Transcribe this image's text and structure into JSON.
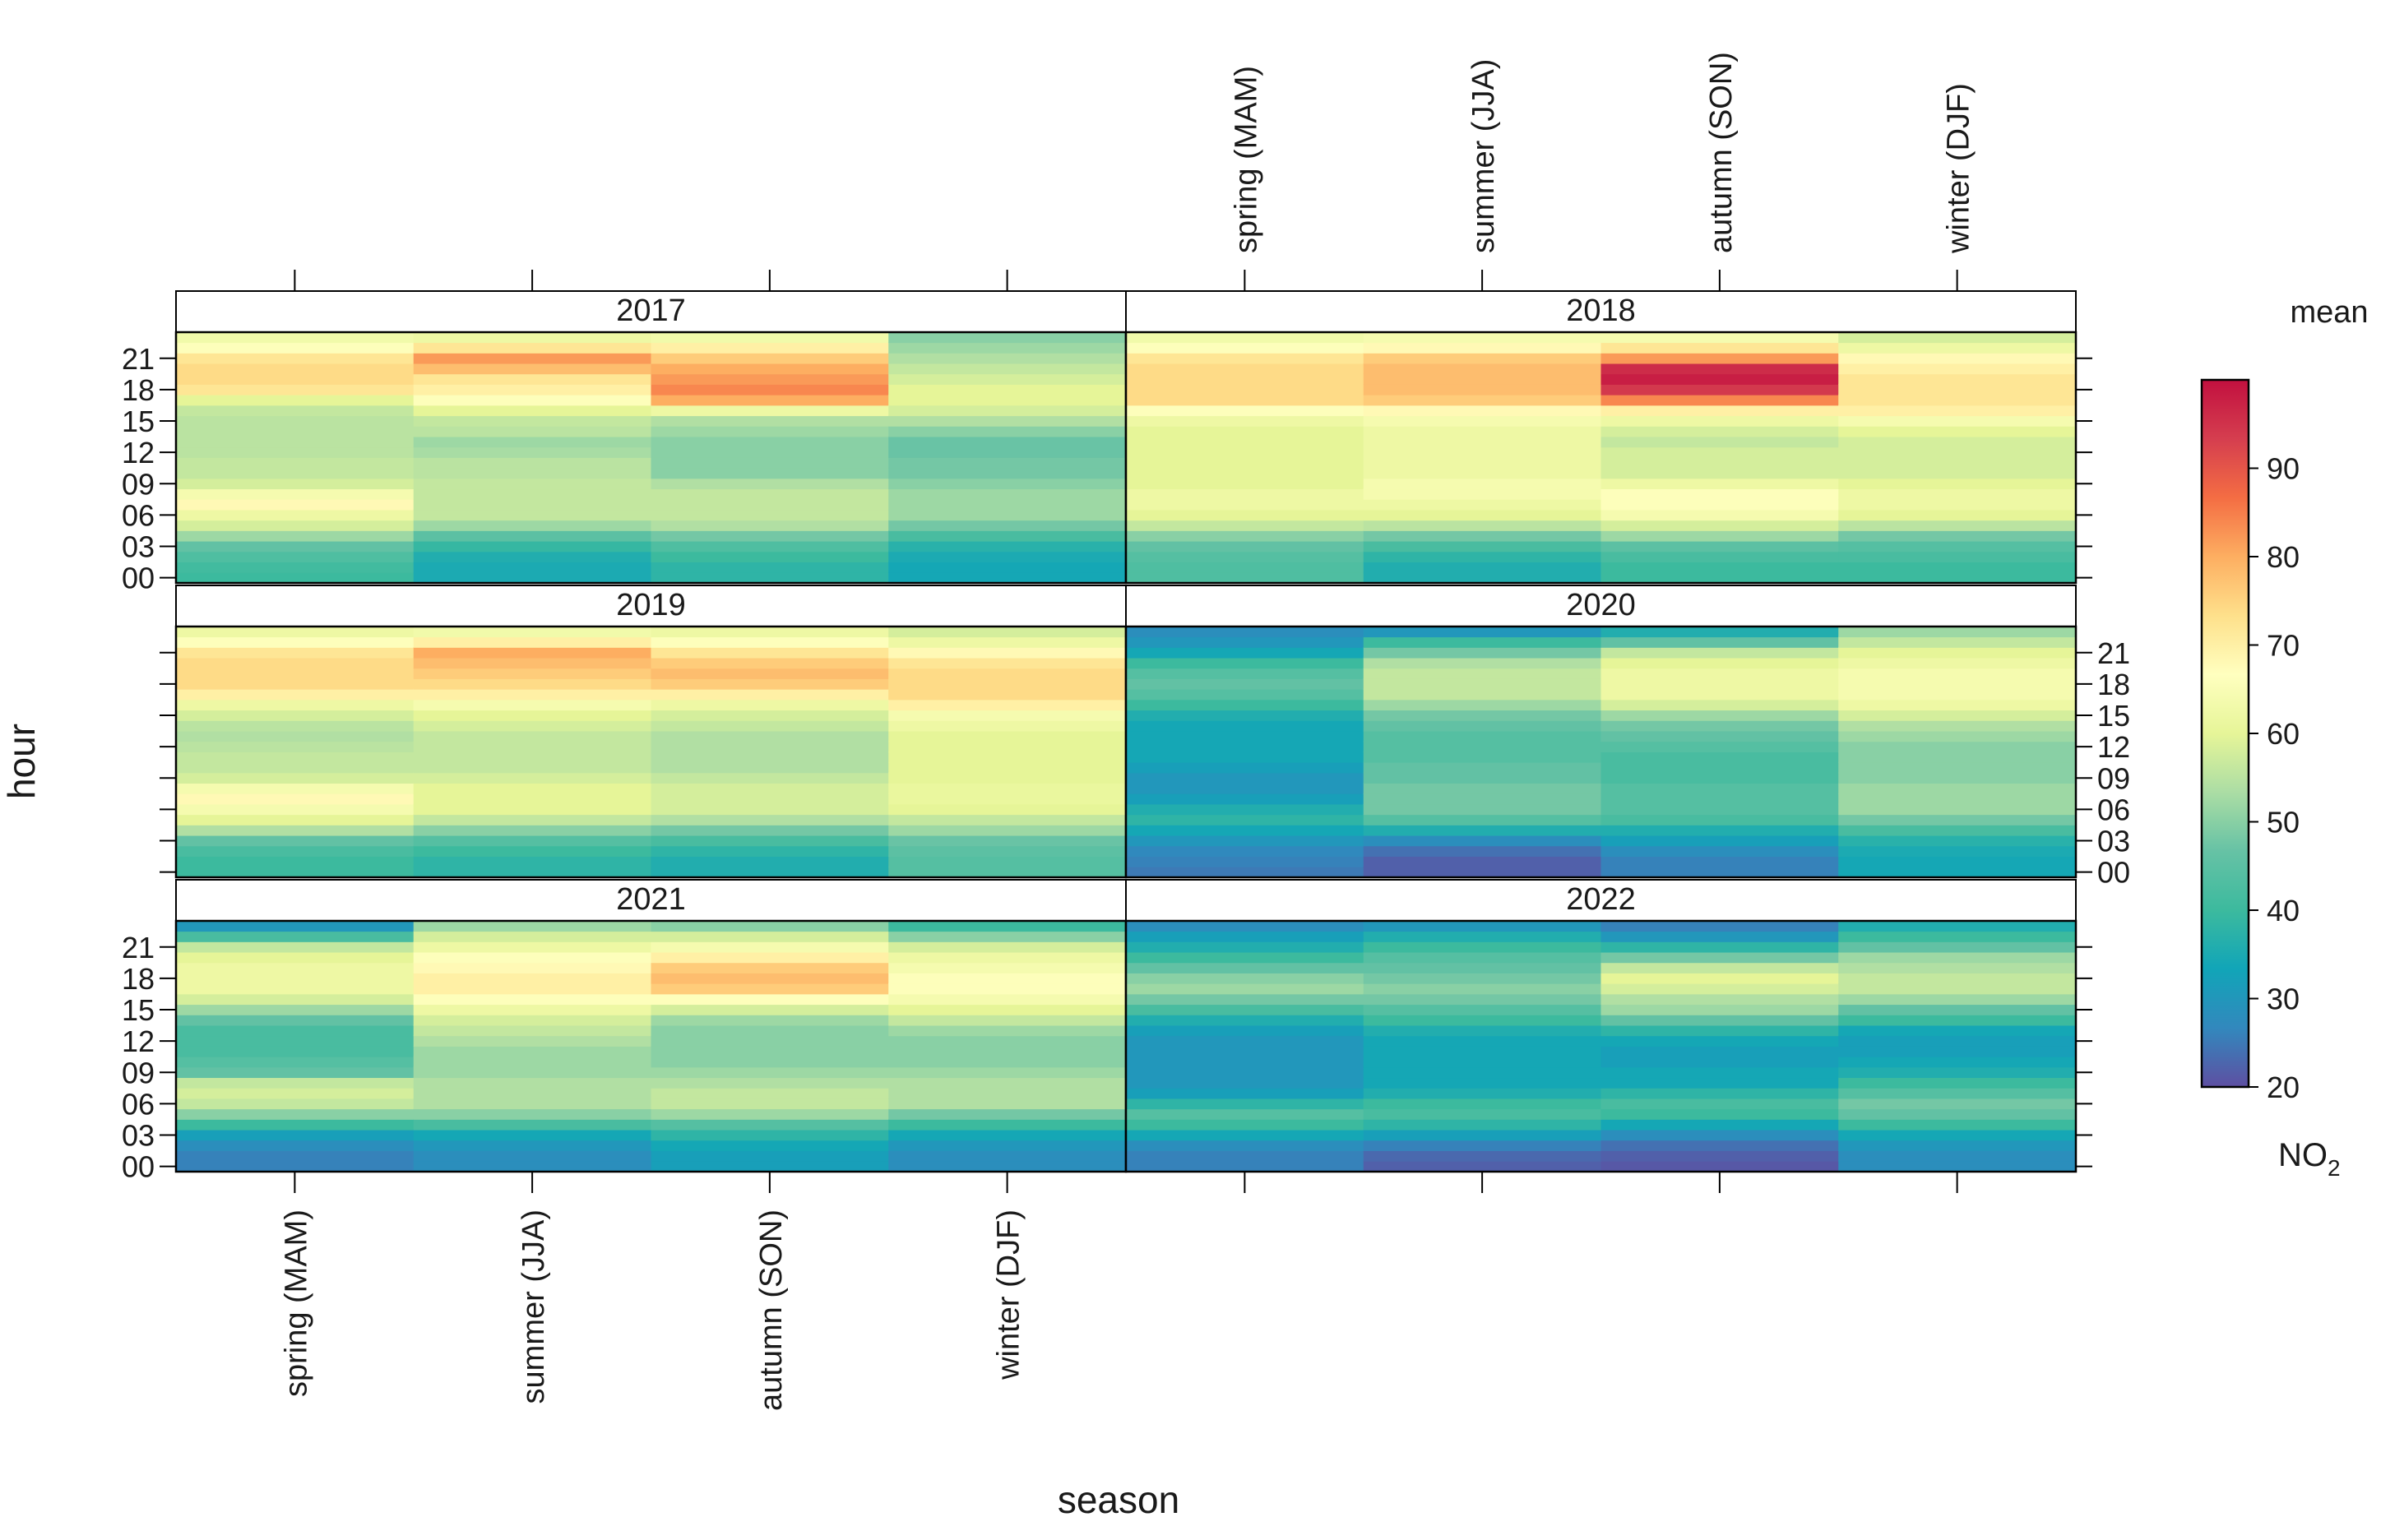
{
  "chart_data": {
    "type": "heatmap",
    "title": "",
    "xlabel": "season",
    "ylabel": "hour",
    "categories": [
      "spring (MAM)",
      "summer (JJA)",
      "autumn (SON)",
      "winter (DJF)"
    ],
    "hour_ticks": [
      "00",
      "03",
      "06",
      "09",
      "12",
      "15",
      "18",
      "21"
    ],
    "legend": {
      "title": "mean",
      "unit_main": "NO",
      "unit_sub": "2",
      "min": 20,
      "max": 100,
      "ticks": [
        20,
        30,
        40,
        50,
        60,
        70,
        80,
        90
      ],
      "placement": "right"
    },
    "colors": [
      "#5E4FA2",
      "#3288BD",
      "#11A5B8",
      "#3CBA9E",
      "#66C2A5",
      "#ABDDA4",
      "#E6F598",
      "#FFFFBF",
      "#FEE08B",
      "#FDAE61",
      "#F46D43",
      "#D53E4F",
      "#C2103F"
    ],
    "panels": [
      {
        "year": "2017",
        "hours": {
          "spring (MAM)": [
            40,
            41,
            43,
            46,
            52,
            58,
            62,
            68,
            64,
            58,
            56,
            56,
            55,
            55,
            55,
            55,
            56,
            60,
            72,
            74,
            74,
            72,
            66,
            63
          ],
          "summer (JJA)": [
            35,
            35,
            36,
            39,
            45,
            52,
            56,
            56,
            56,
            56,
            55,
            55,
            53,
            52,
            55,
            56,
            60,
            66,
            70,
            72,
            78,
            82,
            72,
            62
          ],
          "autumn (SON)": [
            38,
            38,
            40,
            43,
            48,
            54,
            56,
            56,
            56,
            54,
            50,
            50,
            50,
            50,
            52,
            54,
            62,
            80,
            84,
            82,
            80,
            76,
            70,
            63
          ],
          "winter (DJF)": [
            34,
            34,
            35,
            37,
            42,
            48,
            52,
            52,
            52,
            50,
            48,
            48,
            47,
            47,
            50,
            54,
            58,
            60,
            60,
            58,
            56,
            54,
            52,
            50
          ]
        }
      },
      {
        "year": "2018",
        "hours": {
          "spring (MAM)": [
            43,
            43,
            44,
            46,
            50,
            56,
            60,
            62,
            62,
            60,
            60,
            60,
            60,
            60,
            60,
            62,
            66,
            74,
            74,
            74,
            74,
            72,
            66,
            63
          ],
          "summer (JJA)": [
            36,
            36,
            38,
            42,
            48,
            55,
            60,
            62,
            64,
            64,
            62,
            62,
            62,
            62,
            62,
            64,
            68,
            76,
            78,
            78,
            78,
            76,
            68,
            64
          ],
          "autumn (SON)": [
            40,
            40,
            42,
            45,
            52,
            58,
            64,
            66,
            66,
            62,
            58,
            58,
            58,
            56,
            58,
            62,
            70,
            84,
            94,
            98,
            96,
            82,
            72,
            64
          ],
          "winter (DJF)": [
            40,
            40,
            42,
            44,
            48,
            55,
            60,
            62,
            62,
            60,
            58,
            58,
            58,
            58,
            60,
            64,
            70,
            72,
            72,
            72,
            70,
            68,
            62,
            58
          ]
        }
      },
      {
        "year": "2019",
        "hours": {
          "spring (MAM)": [
            40,
            40,
            42,
            46,
            54,
            60,
            64,
            68,
            64,
            58,
            56,
            56,
            55,
            54,
            55,
            58,
            62,
            70,
            74,
            74,
            74,
            72,
            66,
            62
          ],
          "summer (JJA)": [
            38,
            38,
            40,
            44,
            50,
            56,
            60,
            60,
            60,
            58,
            56,
            56,
            56,
            56,
            58,
            60,
            64,
            70,
            74,
            76,
            78,
            80,
            70,
            63
          ],
          "autumn (SON)": [
            36,
            36,
            38,
            42,
            48,
            54,
            58,
            58,
            58,
            56,
            54,
            54,
            54,
            54,
            56,
            58,
            62,
            70,
            76,
            78,
            76,
            72,
            66,
            62
          ],
          "winter (DJF)": [
            44,
            44,
            45,
            47,
            52,
            56,
            60,
            61,
            61,
            60,
            60,
            60,
            60,
            60,
            62,
            64,
            70,
            74,
            74,
            74,
            72,
            68,
            62,
            58
          ]
        }
      },
      {
        "year": "2020",
        "hours": {
          "spring (MAM)": [
            25,
            26,
            27,
            30,
            34,
            38,
            36,
            32,
            30,
            30,
            32,
            34,
            34,
            34,
            34,
            36,
            40,
            44,
            46,
            44,
            40,
            34,
            30,
            28
          ],
          "summer (JJA)": [
            22,
            22,
            24,
            28,
            36,
            44,
            48,
            48,
            48,
            46,
            46,
            44,
            44,
            44,
            46,
            48,
            52,
            56,
            56,
            56,
            54,
            48,
            40,
            30
          ],
          "autumn (SON)": [
            26,
            26,
            28,
            32,
            36,
            42,
            44,
            44,
            44,
            42,
            42,
            42,
            44,
            46,
            48,
            52,
            58,
            62,
            62,
            62,
            60,
            56,
            46,
            36
          ],
          "winter (DJF)": [
            34,
            34,
            35,
            37,
            42,
            48,
            52,
            52,
            52,
            50,
            50,
            50,
            50,
            52,
            54,
            58,
            62,
            64,
            64,
            64,
            62,
            60,
            56,
            52
          ]
        }
      },
      {
        "year": "2021",
        "hours": {
          "spring (MAM)": [
            26,
            26,
            28,
            32,
            40,
            50,
            56,
            58,
            56,
            46,
            44,
            42,
            42,
            42,
            46,
            52,
            58,
            62,
            62,
            62,
            60,
            56,
            42,
            30
          ],
          "summer (JJA)": [
            28,
            28,
            30,
            34,
            42,
            50,
            54,
            54,
            54,
            52,
            52,
            52,
            54,
            56,
            58,
            62,
            66,
            70,
            70,
            68,
            66,
            62,
            58,
            52
          ],
          "autumn (SON)": [
            32,
            32,
            34,
            38,
            44,
            52,
            56,
            56,
            54,
            52,
            50,
            50,
            50,
            50,
            52,
            58,
            66,
            76,
            78,
            76,
            70,
            64,
            58,
            50
          ],
          "winter (DJF)": [
            28,
            28,
            30,
            34,
            40,
            48,
            54,
            54,
            54,
            52,
            50,
            50,
            50,
            52,
            56,
            60,
            64,
            66,
            66,
            64,
            62,
            58,
            50,
            40
          ]
        }
      },
      {
        "year": "2022",
        "hours": {
          "spring (MAM)": [
            26,
            26,
            28,
            34,
            40,
            44,
            38,
            32,
            30,
            30,
            30,
            30,
            30,
            32,
            36,
            42,
            48,
            52,
            50,
            46,
            40,
            36,
            32,
            28
          ],
          "summer (JJA)": [
            22,
            23,
            26,
            32,
            38,
            42,
            40,
            36,
            34,
            34,
            34,
            34,
            34,
            36,
            40,
            44,
            48,
            50,
            48,
            46,
            44,
            40,
            36,
            30
          ],
          "autumn (SON)": [
            21,
            22,
            24,
            28,
            34,
            40,
            42,
            38,
            34,
            34,
            32,
            32,
            34,
            38,
            46,
            52,
            54,
            58,
            60,
            56,
            48,
            38,
            30,
            26
          ],
          "winter (DJF)": [
            28,
            28,
            30,
            34,
            40,
            46,
            48,
            44,
            40,
            36,
            34,
            32,
            32,
            34,
            40,
            46,
            52,
            56,
            56,
            54,
            52,
            46,
            40,
            36
          ]
        }
      }
    ]
  }
}
